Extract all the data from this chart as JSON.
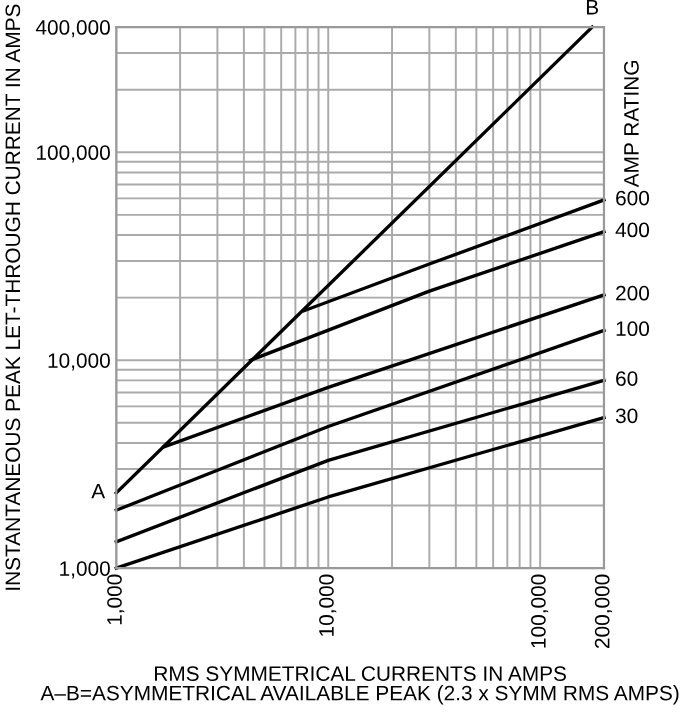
{
  "chart_data": {
    "type": "line",
    "xlabel": "RMS SYMMETRICAL CURRENTS IN AMPS\nA–B=ASYMMETRICAL AVAILABLE PEAK (2.3 x SYMM RMS AMPS)",
    "ylabel": "INSTANTANEOUS PEAK LET-THROUGH CURRENT IN AMPS",
    "legend_title": "AMP RATING",
    "log": "xy",
    "grid": true,
    "legend": false,
    "marker": "none",
    "line_style": "solid",
    "xlim": [
      1000,
      200000
    ],
    "ylim": [
      1000,
      400000
    ],
    "xticks": [
      {
        "value": 1000,
        "label": "1,000"
      },
      {
        "value": 2000,
        "label": null
      },
      {
        "value": 3000,
        "label": null
      },
      {
        "value": 4000,
        "label": null
      },
      {
        "value": 5000,
        "label": null
      },
      {
        "value": 6000,
        "label": null
      },
      {
        "value": 7000,
        "label": null
      },
      {
        "value": 8000,
        "label": null
      },
      {
        "value": 9000,
        "label": null
      },
      {
        "value": 10000,
        "label": "10,000"
      },
      {
        "value": 20000,
        "label": null
      },
      {
        "value": 30000,
        "label": null
      },
      {
        "value": 40000,
        "label": null
      },
      {
        "value": 50000,
        "label": null
      },
      {
        "value": 60000,
        "label": null
      },
      {
        "value": 70000,
        "label": null
      },
      {
        "value": 80000,
        "label": null
      },
      {
        "value": 90000,
        "label": null
      },
      {
        "value": 100000,
        "label": "100,000"
      },
      {
        "value": 200000,
        "label": "200,000"
      }
    ],
    "yticks": [
      {
        "value": 1000,
        "label": "1,000"
      },
      {
        "value": 2000,
        "label": null
      },
      {
        "value": 3000,
        "label": null
      },
      {
        "value": 4000,
        "label": null
      },
      {
        "value": 5000,
        "label": null
      },
      {
        "value": 6000,
        "label": null
      },
      {
        "value": 7000,
        "label": null
      },
      {
        "value": 8000,
        "label": null
      },
      {
        "value": 9000,
        "label": null
      },
      {
        "value": 10000,
        "label": "10,000"
      },
      {
        "value": 20000,
        "label": null
      },
      {
        "value": 30000,
        "label": null
      },
      {
        "value": 40000,
        "label": null
      },
      {
        "value": 50000,
        "label": null
      },
      {
        "value": 60000,
        "label": null
      },
      {
        "value": 70000,
        "label": null
      },
      {
        "value": 80000,
        "label": null
      },
      {
        "value": 90000,
        "label": null
      },
      {
        "value": 100000,
        "label": "100,000"
      },
      {
        "value": 200000,
        "label": null
      },
      {
        "value": 300000,
        "label": null
      },
      {
        "value": 400000,
        "label": "400,000"
      }
    ],
    "series": [
      {
        "color": "#000000",
        "x": [
          1000,
          176000
        ],
        "values": [
          2300,
          400000
        ]
      },
      {
        "name": "600",
        "color": "#000000",
        "x": [
          7700,
          30000,
          200000
        ],
        "values": [
          17300,
          29000,
          59000
        ]
      },
      {
        "name": "400",
        "color": "#000000",
        "x": [
          4300,
          30000,
          200000
        ],
        "values": [
          10000,
          21500,
          41500
        ]
      },
      {
        "name": "200",
        "color": "#000000",
        "x": [
          1680,
          10000,
          200000
        ],
        "values": [
          3830,
          7400,
          20600
        ]
      },
      {
        "name": "100",
        "color": "#000000",
        "x": [
          1000,
          10000,
          200000
        ],
        "values": [
          1900,
          4800,
          13900
        ]
      },
      {
        "name": "60",
        "color": "#000000",
        "x": [
          1000,
          10000,
          200000
        ],
        "values": [
          1340,
          3300,
          8000
        ]
      },
      {
        "name": "30",
        "color": "#000000",
        "x": [
          1000,
          10000,
          200000
        ],
        "values": [
          1000,
          2200,
          5300
        ]
      }
    ],
    "annotations": [
      {
        "text": "A",
        "x": 1000,
        "y": 2300
      },
      {
        "text": "B",
        "x": 176000,
        "y": 400000
      }
    ]
  }
}
